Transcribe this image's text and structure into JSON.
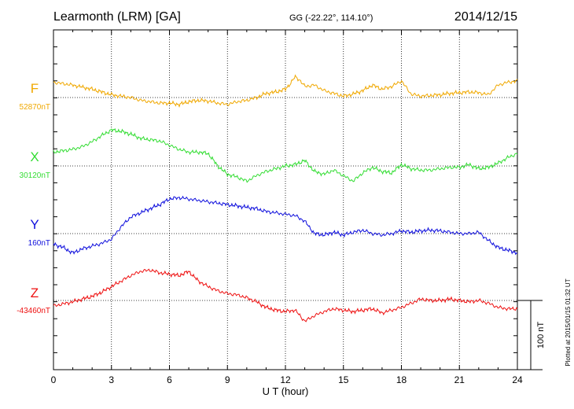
{
  "header": {
    "station": "Learmonth (LRM)  [GA]",
    "coords": "GG (-22.22°, 114.10°)",
    "date": "2014/12/15"
  },
  "plotted_note": "Plotted at 2015/01/15 01:32 UT",
  "chart_data": {
    "type": "line",
    "xlabel": "U T (hour)",
    "xlim": [
      0,
      24
    ],
    "xticks": [
      "0",
      "3",
      "6",
      "9",
      "12",
      "15",
      "18",
      "21",
      "24"
    ],
    "ylabel": "",
    "grid": true,
    "scale_bar": {
      "value": 100,
      "label": "100 nT"
    },
    "series": [
      {
        "name": "F",
        "baseline_label": "52870nT",
        "color": "#f0a800",
        "baseline_nT": 52870,
        "x": [
          0,
          0.5,
          1,
          1.5,
          2,
          2.5,
          3,
          3.5,
          4,
          4.5,
          5,
          5.5,
          6,
          6.5,
          7,
          7.5,
          8,
          8.5,
          9,
          9.5,
          10,
          10.5,
          11,
          11.5,
          12,
          12.25,
          12.5,
          12.75,
          13,
          13.5,
          14,
          14.5,
          15,
          15.5,
          16,
          16.5,
          17,
          17.5,
          18,
          18.5,
          19,
          19.5,
          20,
          20.5,
          21,
          21.5,
          22,
          22.5,
          23,
          23.5,
          24
        ],
        "values": [
          52892,
          52890,
          52888,
          52885,
          52882,
          52878,
          52874,
          52872,
          52870,
          52866,
          52864,
          52862,
          52862,
          52860,
          52864,
          52866,
          52865,
          52862,
          52860,
          52864,
          52866,
          52870,
          52876,
          52878,
          52882,
          52890,
          52900,
          52895,
          52886,
          52888,
          52880,
          52876,
          52872,
          52875,
          52880,
          52888,
          52882,
          52886,
          52894,
          52875,
          52872,
          52873,
          52874,
          52876,
          52877,
          52878,
          52877,
          52874,
          52888,
          52892,
          52894
        ]
      },
      {
        "name": "X",
        "baseline_label": "30120nT",
        "color": "#33dd33",
        "baseline_nT": 30120,
        "x": [
          0,
          0.5,
          1,
          1.5,
          2,
          2.5,
          3,
          3.5,
          4,
          4.5,
          5,
          5.5,
          6,
          6.5,
          7,
          7.5,
          8,
          8.5,
          9,
          9.5,
          10,
          10.5,
          11,
          11.5,
          12,
          12.5,
          13,
          13.5,
          14,
          14.5,
          15,
          15.5,
          16,
          16.5,
          17,
          17.5,
          18,
          18.5,
          19,
          19.5,
          20,
          20.5,
          21,
          21.5,
          22,
          22.5,
          23,
          23.5,
          24
        ],
        "values": [
          30140,
          30142,
          30144,
          30148,
          30155,
          30164,
          30172,
          30170,
          30166,
          30160,
          30158,
          30156,
          30150,
          30144,
          30140,
          30140,
          30138,
          30120,
          30108,
          30104,
          30098,
          30106,
          30112,
          30116,
          30120,
          30122,
          30128,
          30112,
          30108,
          30114,
          30106,
          30098,
          30110,
          30118,
          30112,
          30110,
          30122,
          30116,
          30114,
          30114,
          30116,
          30118,
          30118,
          30122,
          30116,
          30118,
          30124,
          30132,
          30138
        ]
      },
      {
        "name": "Y",
        "baseline_label": "160nT",
        "color": "#1010dd",
        "baseline_nT": 160,
        "x": [
          0,
          0.5,
          1,
          1.5,
          2,
          2.5,
          3,
          3.5,
          4,
          4.5,
          5,
          5.5,
          6,
          6.5,
          7,
          7.5,
          8,
          8.5,
          9,
          9.5,
          10,
          10.5,
          11,
          11.5,
          12,
          12.5,
          13,
          13.5,
          14,
          14.5,
          15,
          15.5,
          16,
          16.5,
          17,
          17.5,
          18,
          18.5,
          19,
          19.5,
          20,
          20.5,
          21,
          21.5,
          22,
          22.5,
          23,
          23.5,
          24
        ],
        "values": [
          145,
          140,
          132,
          138,
          142,
          146,
          152,
          170,
          184,
          190,
          196,
          202,
          210,
          212,
          210,
          208,
          206,
          204,
          202,
          200,
          198,
          196,
          192,
          190,
          188,
          186,
          178,
          160,
          158,
          162,
          158,
          162,
          165,
          160,
          158,
          160,
          164,
          162,
          164,
          165,
          164,
          162,
          160,
          160,
          162,
          150,
          140,
          136,
          132
        ]
      },
      {
        "name": "Z",
        "baseline_label": "-43460nT",
        "color": "#ee1111",
        "baseline_nT": -43460,
        "x": [
          0,
          0.5,
          1,
          1.5,
          2,
          2.5,
          3,
          3.5,
          4,
          4.5,
          5,
          5.5,
          6,
          6.5,
          7,
          7.5,
          8,
          8.5,
          9,
          9.5,
          10,
          10.5,
          11,
          11.5,
          12,
          12.5,
          13,
          13.5,
          14,
          14.5,
          15,
          15.5,
          16,
          16.5,
          17,
          17.5,
          18,
          18.5,
          19,
          19.5,
          20,
          20.5,
          21,
          21.5,
          22,
          22.5,
          23,
          23.5,
          24
        ],
        "values": [
          -43468,
          -43465,
          -43462,
          -43458,
          -43454,
          -43448,
          -43440,
          -43432,
          -43424,
          -43418,
          -43416,
          -43420,
          -43422,
          -43424,
          -43418,
          -43432,
          -43440,
          -43446,
          -43450,
          -43452,
          -43456,
          -43462,
          -43470,
          -43474,
          -43476,
          -43474,
          -43490,
          -43482,
          -43476,
          -43472,
          -43474,
          -43476,
          -43474,
          -43472,
          -43478,
          -43474,
          -43470,
          -43464,
          -43458,
          -43460,
          -43460,
          -43458,
          -43460,
          -43462,
          -43460,
          -43464,
          -43470,
          -43472,
          -43472
        ]
      }
    ]
  }
}
